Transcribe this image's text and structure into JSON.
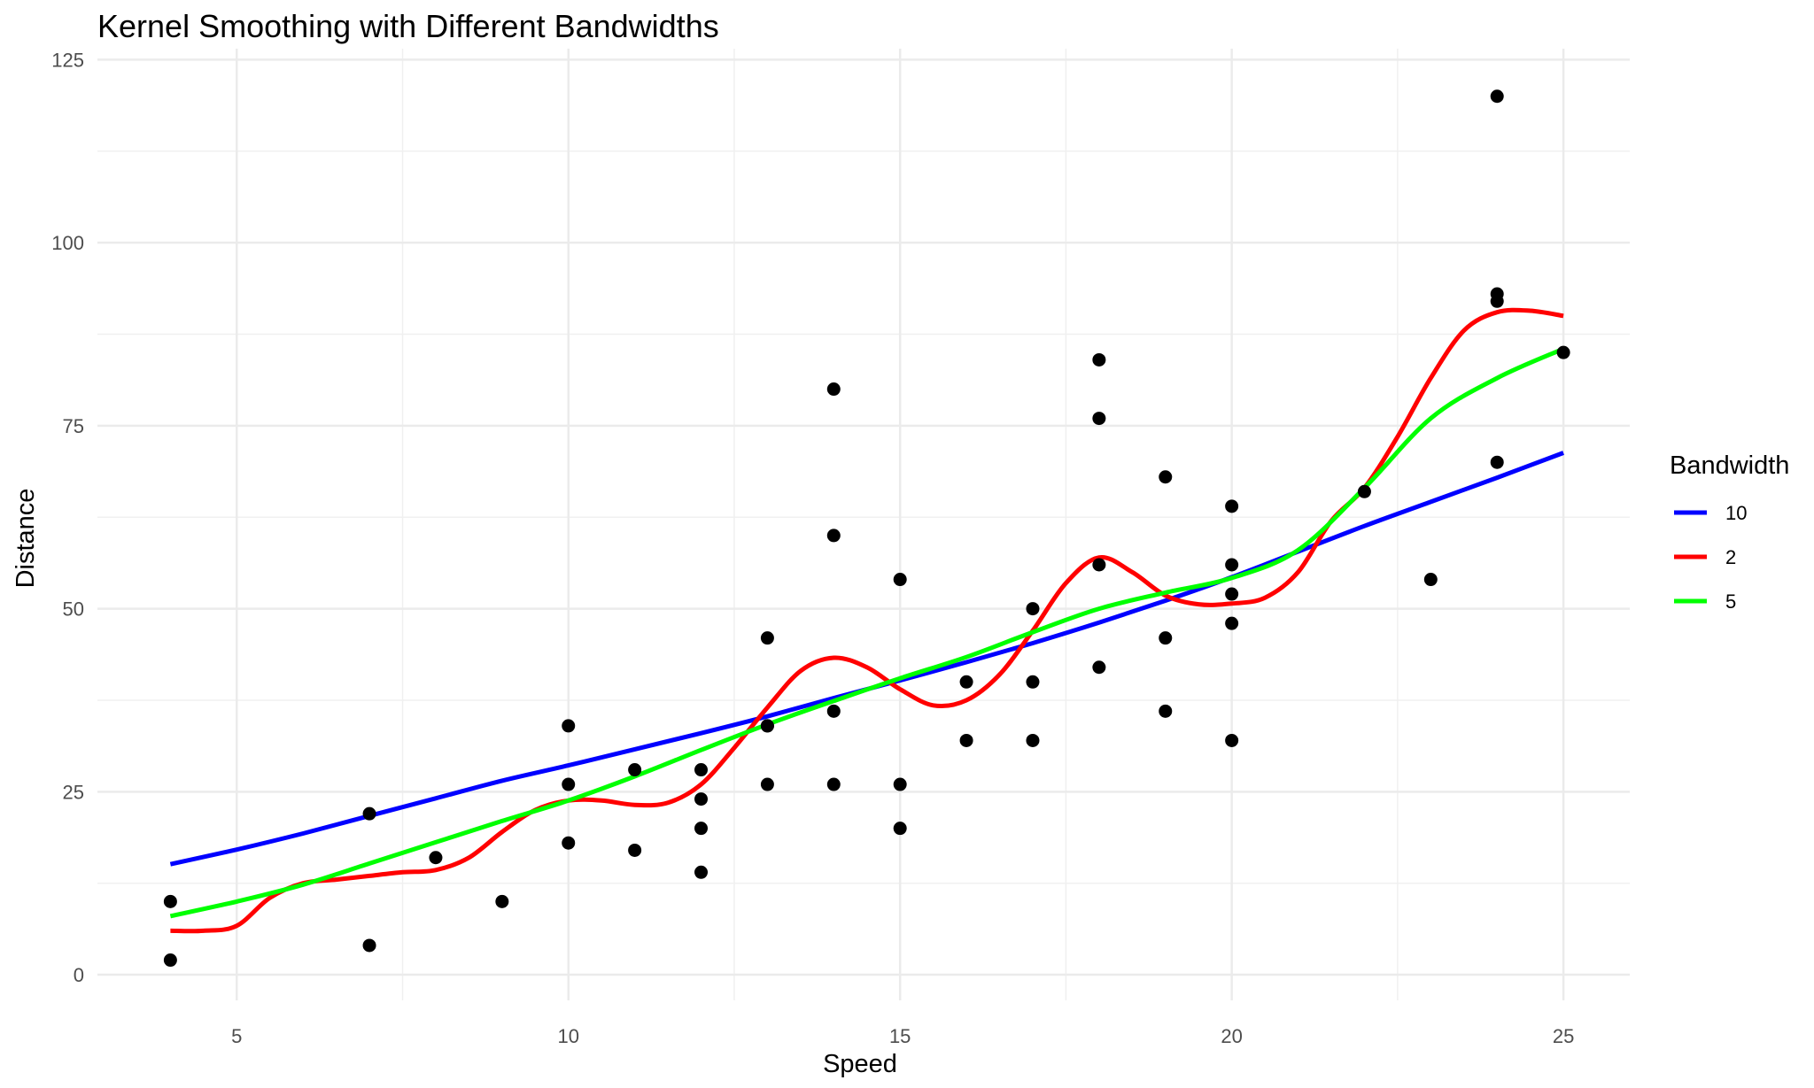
{
  "chart_data": {
    "type": "scatter",
    "title": "Kernel Smoothing with Different Bandwidths",
    "xlabel": "Speed",
    "ylabel": "Distance",
    "xlim": [
      2.9,
      26.0
    ],
    "ylim": [
      -3.5,
      126.5
    ],
    "x_ticks": [
      5,
      10,
      15,
      20,
      25
    ],
    "y_ticks": [
      0,
      25,
      50,
      75,
      100,
      125
    ],
    "grid": true,
    "legend": {
      "title": "Bandwidth",
      "placement": "right"
    },
    "points": [
      [
        4,
        2
      ],
      [
        4,
        10
      ],
      [
        7,
        4
      ],
      [
        7,
        22
      ],
      [
        8,
        16
      ],
      [
        9,
        10
      ],
      [
        10,
        18
      ],
      [
        10,
        26
      ],
      [
        10,
        34
      ],
      [
        11,
        17
      ],
      [
        11,
        28
      ],
      [
        12,
        14
      ],
      [
        12,
        20
      ],
      [
        12,
        24
      ],
      [
        12,
        28
      ],
      [
        13,
        26
      ],
      [
        13,
        34
      ],
      [
        13,
        34
      ],
      [
        13,
        46
      ],
      [
        14,
        26
      ],
      [
        14,
        36
      ],
      [
        14,
        60
      ],
      [
        14,
        80
      ],
      [
        15,
        20
      ],
      [
        15,
        26
      ],
      [
        15,
        54
      ],
      [
        16,
        32
      ],
      [
        16,
        40
      ],
      [
        17,
        32
      ],
      [
        17,
        40
      ],
      [
        17,
        50
      ],
      [
        18,
        42
      ],
      [
        18,
        56
      ],
      [
        18,
        76
      ],
      [
        18,
        84
      ],
      [
        19,
        36
      ],
      [
        19,
        46
      ],
      [
        19,
        68
      ],
      [
        20,
        32
      ],
      [
        20,
        48
      ],
      [
        20,
        52
      ],
      [
        20,
        56
      ],
      [
        20,
        64
      ],
      [
        22,
        66
      ],
      [
        23,
        54
      ],
      [
        24,
        70
      ],
      [
        24,
        92
      ],
      [
        24,
        93
      ],
      [
        24,
        120
      ],
      [
        25,
        85
      ]
    ],
    "series": [
      {
        "name": "10",
        "color": "#0000ff",
        "x": [
          4,
          5,
          6,
          7,
          8,
          9,
          10,
          11,
          12,
          13,
          14,
          15,
          16,
          17,
          18,
          19,
          20,
          21,
          22,
          23,
          24,
          25
        ],
        "y": [
          15.1,
          17.1,
          19.3,
          21.7,
          24.1,
          26.5,
          28.6,
          30.8,
          33.0,
          35.3,
          37.8,
          40.2,
          42.7,
          45.3,
          48.1,
          51.1,
          54.3,
          57.8,
          61.3,
          64.6,
          67.9,
          71.3
        ]
      },
      {
        "name": "2",
        "color": "#ff0000",
        "x": [
          4,
          4.5,
          5,
          5.5,
          6,
          6.5,
          7,
          7.5,
          8,
          8.5,
          9,
          9.5,
          10,
          10.5,
          11,
          11.5,
          12,
          12.5,
          13,
          13.5,
          14,
          14.5,
          15,
          15.5,
          16,
          16.5,
          17,
          17.5,
          18,
          18.5,
          19,
          19.5,
          20,
          20.5,
          21,
          21.5,
          22,
          22.5,
          23,
          23.5,
          24,
          24.5,
          25
        ],
        "y": [
          6,
          6,
          6.7,
          10.5,
          12.5,
          13,
          13.5,
          14,
          14.3,
          16,
          19.5,
          22.5,
          23.8,
          23.8,
          23.2,
          23.5,
          26,
          31,
          36.5,
          41.5,
          43.3,
          42,
          39,
          36.8,
          37.5,
          41,
          47,
          53.5,
          57,
          55,
          51.8,
          50.6,
          50.7,
          51.5,
          55,
          62,
          66.5,
          73.5,
          81.5,
          88,
          90.5,
          90.7,
          90
        ]
      },
      {
        "name": "5",
        "color": "#00ff00",
        "x": [
          4,
          5,
          6,
          7,
          8,
          9,
          10,
          11,
          12,
          13,
          14,
          15,
          16,
          17,
          18,
          19,
          20,
          21,
          22,
          23,
          24,
          25
        ],
        "y": [
          8,
          10,
          12.3,
          15.2,
          18.1,
          21,
          23.8,
          27.1,
          30.7,
          34.2,
          37.4,
          40.5,
          43.4,
          46.8,
          50,
          52.2,
          54.2,
          58,
          66.5,
          76,
          81.5,
          85.5
        ]
      }
    ]
  }
}
